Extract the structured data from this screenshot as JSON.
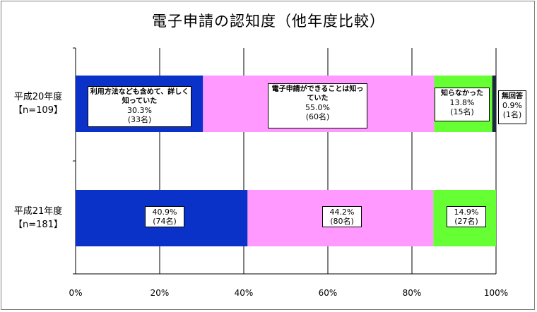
{
  "chart_data": {
    "type": "bar",
    "stacked": "percent",
    "orientation": "horizontal",
    "title": "電子申請の認知度（他年度比較）",
    "categories": [
      "平成20年度\n【n=109】",
      "平成21年度\n【n=181】"
    ],
    "xlim": [
      0,
      100
    ],
    "x_ticks": [
      "0%",
      "20%",
      "40%",
      "60%",
      "80%",
      "100%"
    ],
    "grid": true,
    "series": [
      {
        "name": "利用方法なども含めて、詳しく知っていた",
        "color": "#0a32c8",
        "values": [
          30.3,
          40.9
        ],
        "labels": [
          {
            "name": "利用方法なども含めて、詳しく知っていた",
            "pct": "30.3%",
            "count": "(33名)"
          },
          {
            "name": "",
            "pct": "40.9%",
            "count": "(74名)"
          }
        ]
      },
      {
        "name": "電子申請ができることは知っていた",
        "color": "#ff99ff",
        "values": [
          55.0,
          44.2
        ],
        "labels": [
          {
            "name": "電子申請ができることは知っていた",
            "pct": "55.0%",
            "count": "(60名)"
          },
          {
            "name": "",
            "pct": "44.2%",
            "count": "(80名)"
          }
        ]
      },
      {
        "name": "知らなかった",
        "color": "#66ff33",
        "values": [
          13.8,
          14.9
        ],
        "labels": [
          {
            "name": "知らなかった",
            "pct": "13.8%",
            "count": "(15名)"
          },
          {
            "name": "",
            "pct": "14.9%",
            "count": "(27名)"
          }
        ]
      },
      {
        "name": "無回答",
        "color": "#1a2a3a",
        "values": [
          0.9,
          0
        ],
        "labels": [
          {
            "name": "無回答",
            "pct": "0.9%",
            "count": "(1名)"
          },
          null
        ]
      }
    ]
  }
}
